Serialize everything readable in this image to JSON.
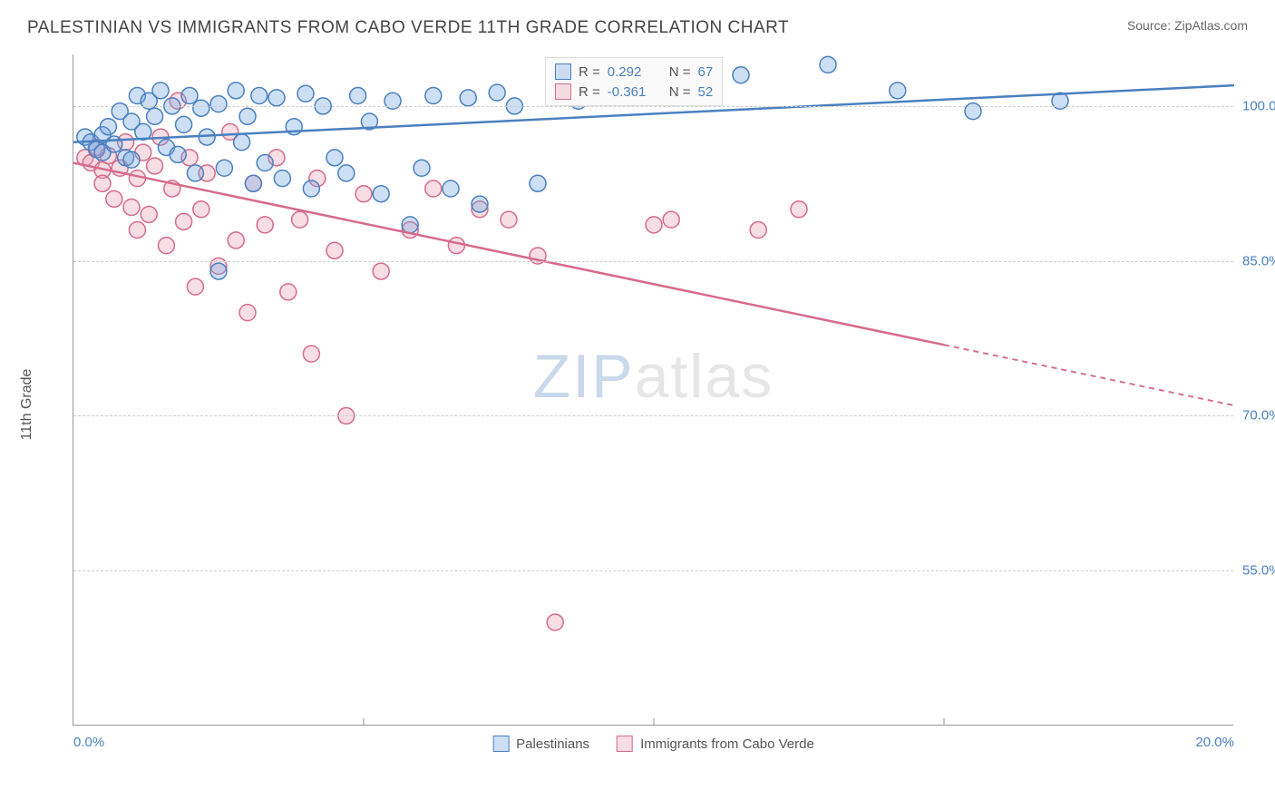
{
  "header": {
    "title": "PALESTINIAN VS IMMIGRANTS FROM CABO VERDE 11TH GRADE CORRELATION CHART",
    "source": "Source: ZipAtlas.com"
  },
  "axes": {
    "y_title": "11th Grade",
    "xlim": [
      0,
      20
    ],
    "ylim": [
      40,
      105
    ],
    "yticks": [
      {
        "v": 100,
        "label": "100.0%"
      },
      {
        "v": 85,
        "label": "85.0%"
      },
      {
        "v": 70,
        "label": "70.0%"
      },
      {
        "v": 55,
        "label": "55.0%"
      }
    ],
    "xticks": [
      {
        "v": 0,
        "label": "0.0%",
        "align": "left"
      },
      {
        "v": 20,
        "label": "20.0%",
        "align": "right"
      }
    ],
    "x_minor_ticks": [
      5,
      10,
      15
    ]
  },
  "series": {
    "a": {
      "label": "Palestinians",
      "color": "#6fa3df",
      "fill": "rgba(111,163,223,0.35)",
      "stroke": "#4a80c0",
      "r_value": "0.292",
      "n_value": "67",
      "trend": {
        "x1": 0,
        "y1": 96.5,
        "x2": 20,
        "y2": 102,
        "dash_from_x": 20
      },
      "marker_r": 9,
      "points": [
        [
          0.2,
          97
        ],
        [
          0.3,
          96.5
        ],
        [
          0.4,
          95.8
        ],
        [
          0.5,
          97.2
        ],
        [
          0.5,
          95.5
        ],
        [
          0.6,
          98
        ],
        [
          0.7,
          96.3
        ],
        [
          0.8,
          99.5
        ],
        [
          0.9,
          95
        ],
        [
          1.0,
          98.5
        ],
        [
          1.0,
          94.8
        ],
        [
          1.1,
          101
        ],
        [
          1.2,
          97.5
        ],
        [
          1.3,
          100.5
        ],
        [
          1.4,
          99
        ],
        [
          1.5,
          101.5
        ],
        [
          1.6,
          96
        ],
        [
          1.7,
          100
        ],
        [
          1.8,
          95.3
        ],
        [
          1.9,
          98.2
        ],
        [
          2.0,
          101
        ],
        [
          2.1,
          93.5
        ],
        [
          2.2,
          99.8
        ],
        [
          2.3,
          97
        ],
        [
          2.5,
          100.2
        ],
        [
          2.5,
          84
        ],
        [
          2.6,
          94
        ],
        [
          2.8,
          101.5
        ],
        [
          2.9,
          96.5
        ],
        [
          3.0,
          99
        ],
        [
          3.1,
          92.5
        ],
        [
          3.2,
          101
        ],
        [
          3.3,
          94.5
        ],
        [
          3.5,
          100.8
        ],
        [
          3.6,
          93
        ],
        [
          3.8,
          98
        ],
        [
          4.0,
          101.2
        ],
        [
          4.1,
          92
        ],
        [
          4.3,
          100
        ],
        [
          4.5,
          95
        ],
        [
          4.7,
          93.5
        ],
        [
          4.9,
          101
        ],
        [
          5.1,
          98.5
        ],
        [
          5.3,
          91.5
        ],
        [
          5.5,
          100.5
        ],
        [
          5.8,
          88.5
        ],
        [
          6.0,
          94
        ],
        [
          6.2,
          101
        ],
        [
          6.5,
          92
        ],
        [
          6.8,
          100.8
        ],
        [
          7.0,
          90.5
        ],
        [
          7.3,
          101.3
        ],
        [
          7.6,
          100
        ],
        [
          8.0,
          92.5
        ],
        [
          8.3,
          101
        ],
        [
          8.7,
          100.5
        ],
        [
          9.2,
          101.2
        ],
        [
          11.5,
          103
        ],
        [
          13.0,
          104
        ],
        [
          14.2,
          101.5
        ],
        [
          15.5,
          99.5
        ],
        [
          17.0,
          100.5
        ]
      ]
    },
    "b": {
      "label": "Immigrants from Cabo Verde",
      "color": "#e89db3",
      "fill": "rgba(232,157,179,0.35)",
      "stroke": "#d66b8a",
      "r_value": "-0.361",
      "n_value": "52",
      "trend": {
        "x1": 0,
        "y1": 94.5,
        "x2": 20,
        "y2": 71,
        "dash_from_x": 15
      },
      "marker_r": 9,
      "points": [
        [
          0.2,
          95
        ],
        [
          0.3,
          94.5
        ],
        [
          0.4,
          96
        ],
        [
          0.5,
          93.8
        ],
        [
          0.5,
          92.5
        ],
        [
          0.6,
          95.2
        ],
        [
          0.7,
          91
        ],
        [
          0.8,
          94
        ],
        [
          0.9,
          96.5
        ],
        [
          1.0,
          90.2
        ],
        [
          1.1,
          93
        ],
        [
          1.1,
          88
        ],
        [
          1.2,
          95.5
        ],
        [
          1.3,
          89.5
        ],
        [
          1.4,
          94.2
        ],
        [
          1.5,
          97
        ],
        [
          1.6,
          86.5
        ],
        [
          1.7,
          92
        ],
        [
          1.8,
          100.5
        ],
        [
          1.9,
          88.8
        ],
        [
          2.0,
          95
        ],
        [
          2.1,
          82.5
        ],
        [
          2.2,
          90
        ],
        [
          2.3,
          93.5
        ],
        [
          2.5,
          84.5
        ],
        [
          2.7,
          97.5
        ],
        [
          2.8,
          87
        ],
        [
          3.0,
          80
        ],
        [
          3.1,
          92.5
        ],
        [
          3.3,
          88.5
        ],
        [
          3.5,
          95
        ],
        [
          3.7,
          82
        ],
        [
          3.9,
          89
        ],
        [
          4.1,
          76
        ],
        [
          4.2,
          93
        ],
        [
          4.5,
          86
        ],
        [
          4.7,
          70
        ],
        [
          5.0,
          91.5
        ],
        [
          5.3,
          84
        ],
        [
          5.8,
          88
        ],
        [
          6.2,
          92
        ],
        [
          6.6,
          86.5
        ],
        [
          7.0,
          90
        ],
        [
          7.5,
          89
        ],
        [
          8.0,
          85.5
        ],
        [
          8.3,
          50
        ],
        [
          10.0,
          88.5
        ],
        [
          10.3,
          89
        ],
        [
          11.8,
          88
        ],
        [
          12.5,
          90
        ]
      ]
    }
  },
  "watermark": {
    "part1": "ZIP",
    "part2": "atlas"
  },
  "legend_labels": {
    "r": "R =",
    "n": "N ="
  },
  "colors": {
    "grid": "#cccccc",
    "axis": "#999999",
    "tick_text": "#4a80c0",
    "title_text": "#444444"
  }
}
